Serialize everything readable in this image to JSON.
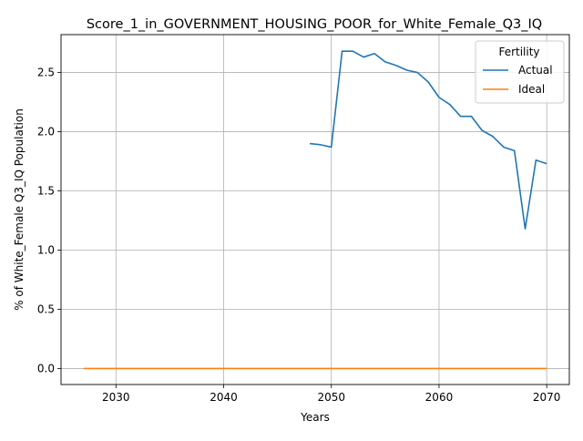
{
  "chart_data": {
    "type": "line",
    "title": "Score_1_in_GOVERNMENT_HOUSING_POOR_for_White_Female_Q3_IQ",
    "xlabel": "Years",
    "ylabel": "% of White_Female Q3_IQ Population",
    "xlim": [
      2024.9,
      2072.1
    ],
    "ylim": [
      -0.135,
      2.82
    ],
    "x_ticks": [
      2030,
      2040,
      2050,
      2060,
      2070
    ],
    "y_ticks": [
      0.0,
      0.5,
      1.0,
      1.5,
      2.0,
      2.5
    ],
    "x_tick_labels": [
      "2030",
      "2040",
      "2050",
      "2060",
      "2070"
    ],
    "y_tick_labels": [
      "0.0",
      "0.5",
      "1.0",
      "1.5",
      "2.0",
      "2.5"
    ],
    "grid": true,
    "legend": {
      "title": "Fertility",
      "placement": "top-right"
    },
    "series": [
      {
        "name": "Actual",
        "color": "#1f77b4",
        "x": [
          2048,
          2049,
          2050,
          2051,
          2052,
          2053,
          2054,
          2055,
          2056,
          2057,
          2058,
          2059,
          2060,
          2061,
          2062,
          2063,
          2064,
          2065,
          2066,
          2067,
          2068,
          2069,
          2070
        ],
        "y": [
          1.9,
          1.89,
          1.87,
          2.68,
          2.68,
          2.63,
          2.66,
          2.59,
          2.56,
          2.52,
          2.5,
          2.42,
          2.29,
          2.23,
          2.13,
          2.13,
          2.01,
          1.96,
          1.87,
          1.84,
          1.18,
          1.76,
          1.73
        ]
      },
      {
        "name": "Ideal",
        "color": "#ff7f0e",
        "x": [
          2027,
          2028,
          2029,
          2030,
          2031,
          2032,
          2033,
          2034,
          2035,
          2036,
          2037,
          2038,
          2039,
          2040,
          2041,
          2042,
          2043,
          2044,
          2045,
          2046,
          2047,
          2048,
          2049,
          2050,
          2051,
          2052,
          2053,
          2054,
          2055,
          2056,
          2057,
          2058,
          2059,
          2060,
          2061,
          2062,
          2063,
          2064,
          2065,
          2066,
          2067,
          2068,
          2069,
          2070
        ],
        "y": [
          0,
          0,
          0,
          0,
          0,
          0,
          0,
          0,
          0,
          0,
          0,
          0,
          0,
          0,
          0,
          0,
          0,
          0,
          0,
          0,
          0,
          0,
          0,
          0,
          0,
          0,
          0,
          0,
          0,
          0,
          0,
          0,
          0,
          0,
          0,
          0,
          0,
          0,
          0,
          0,
          0,
          0,
          0,
          0
        ]
      }
    ]
  }
}
